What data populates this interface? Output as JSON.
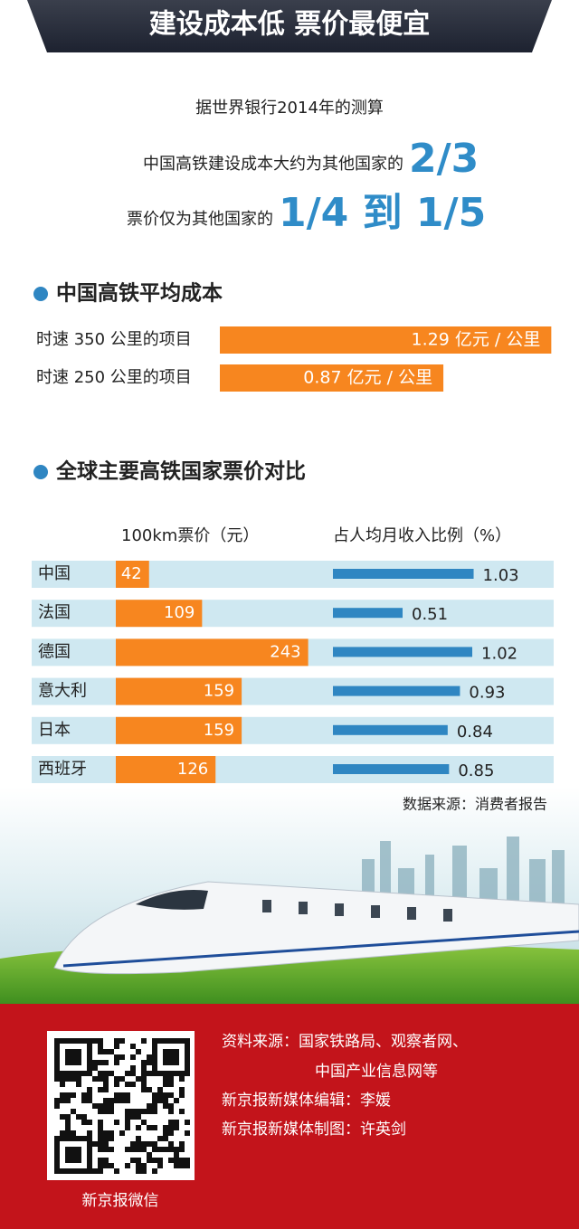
{
  "header": {
    "title": "建设成本低  票价最便宜"
  },
  "intro": {
    "line1": "据世界银行2014年的测算",
    "line2": {
      "text": "中国高铁建设成本大约为其他国家的",
      "highlight": "2/3"
    },
    "line3": {
      "text": "票价仅为其他国家的",
      "highlight": "1/4 到 1/5"
    }
  },
  "chart_data": [
    {
      "type": "bar",
      "title": "中国高铁平均成本",
      "categories": [
        "时速 350 公里的项目",
        "时速 250 公里的项目"
      ],
      "values": [
        1.29,
        0.87
      ],
      "value_labels": [
        "1.29 亿元 / 公里",
        "0.87 亿元 / 公里"
      ],
      "color": "#f7861f"
    },
    {
      "type": "bar",
      "title": "全球主要高铁国家票价对比",
      "categories": [
        "中国",
        "法国",
        "德国",
        "意大利",
        "日本",
        "西班牙"
      ],
      "series": [
        {
          "name": "100km票价（元）",
          "color": "#f7861f",
          "values": [
            42,
            109,
            243,
            159,
            159,
            126
          ]
        },
        {
          "name": "占人均月收入比例（%）",
          "color": "#2f86c2",
          "values": [
            1.03,
            0.51,
            1.02,
            0.93,
            0.84,
            0.85
          ]
        }
      ],
      "source": "数据来源：消费者报告"
    }
  ],
  "footer": {
    "credits": [
      "资料来源：国家铁路局、观察者网、",
      "中国产业信息网等",
      "新京报新媒体编辑：李媛",
      "新京报新媒体制图：许英剑"
    ],
    "qr_caption": "新京报微信"
  }
}
